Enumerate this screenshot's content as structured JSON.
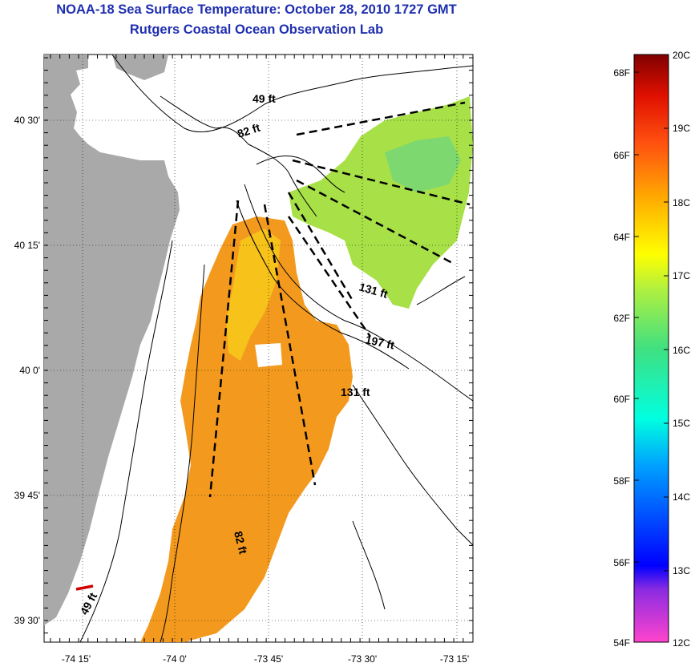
{
  "title": {
    "line1": "NOAA-18 Sea Surface Temperature:  October 28, 2010 1727 GMT",
    "line2": "Rutgers Coastal Ocean Observation Lab"
  },
  "map": {
    "lat_ticks": [
      "40 30'",
      "40 15'",
      "40 0'",
      "39 45'",
      "39 30'"
    ],
    "lon_ticks": [
      "-74 15'",
      "-74 0'",
      "-73 45'",
      "-73 30'",
      "-73 15'"
    ],
    "isobath_labels": [
      "49 ft",
      "82 ft",
      "131 ft",
      "197 ft",
      "131 ft",
      "82 ft",
      "49 ft"
    ],
    "colors": {
      "land": "#a9a9a9",
      "sst_warm": "#f39a1e",
      "sst_mid": "#f7c21a",
      "sst_cool": "#a8e048"
    }
  },
  "colorbar": {
    "fahrenheit": [
      "68F",
      "66F",
      "64F",
      "62F",
      "60F",
      "58F",
      "56F",
      "54F"
    ],
    "celsius": [
      "20C",
      "19C",
      "18C",
      "17C",
      "16C",
      "15C",
      "14C",
      "13C",
      "12C"
    ]
  }
}
